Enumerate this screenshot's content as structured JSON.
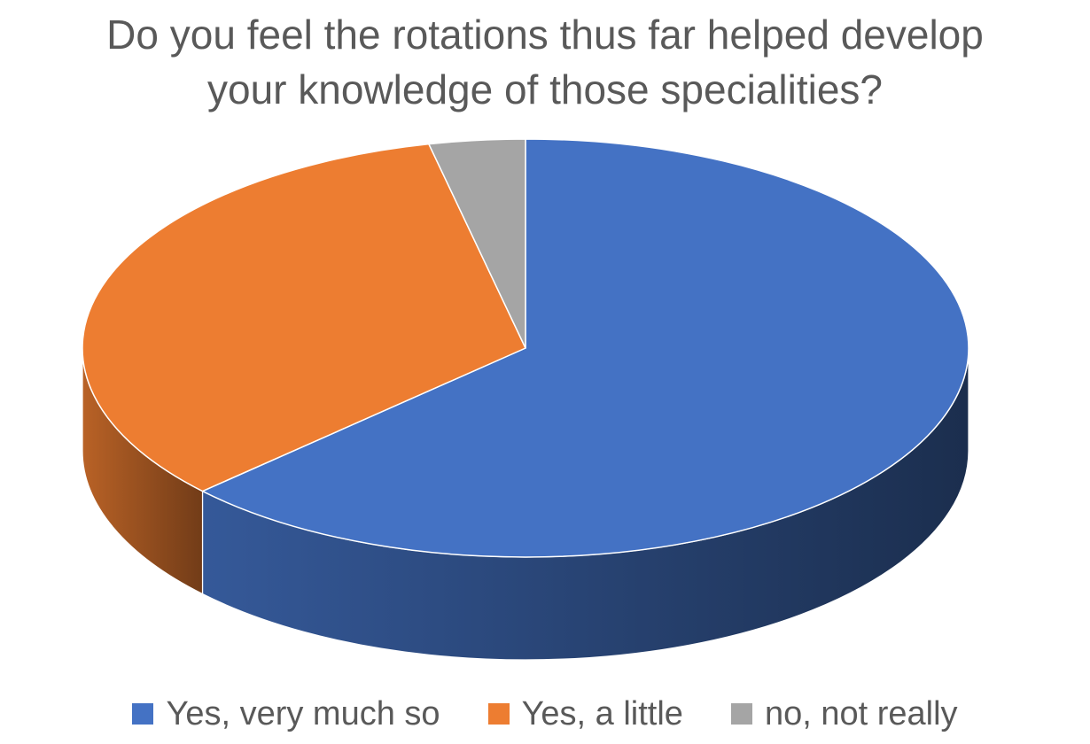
{
  "chart_data": {
    "type": "pie",
    "title_lines": [
      "Do you feel the rotations thus far helped develop",
      "your knowledge of those specialities?"
    ],
    "legend_position": "bottom",
    "style": "3d",
    "slices": [
      {
        "label": "Yes, very much so",
        "value": 63,
        "color": "#4472C4"
      },
      {
        "label": "Yes, a little",
        "value": 33.5,
        "color": "#ED7D31"
      },
      {
        "label": "no, not really",
        "value": 3.5,
        "color": "#A5A5A5"
      }
    ]
  }
}
